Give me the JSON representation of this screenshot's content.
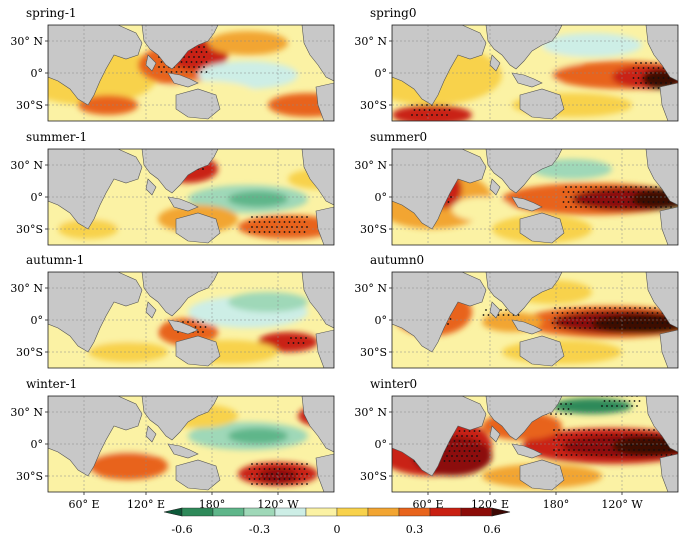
{
  "panels": [
    {
      "id": "spring-1",
      "title": "spring-1",
      "col": 0,
      "row": 0
    },
    {
      "id": "spring0",
      "title": "spring0",
      "col": 1,
      "row": 0
    },
    {
      "id": "summer-1",
      "title": "summer-1",
      "col": 0,
      "row": 1
    },
    {
      "id": "summer0",
      "title": "summer0",
      "col": 1,
      "row": 1
    },
    {
      "id": "autumn-1",
      "title": "autumn-1",
      "col": 0,
      "row": 2
    },
    {
      "id": "autumn0",
      "title": "autumn0",
      "col": 1,
      "row": 2
    },
    {
      "id": "winter-1",
      "title": "winter-1",
      "col": 0,
      "row": 3
    },
    {
      "id": "winter0",
      "title": "winter0",
      "col": 1,
      "row": 3
    }
  ],
  "lat_ticks": [
    "30° N",
    "0°",
    "30°S"
  ],
  "lon_ticks": [
    "60° E",
    "120° E",
    "180°",
    "120° W"
  ],
  "colorbar": {
    "ticks": [
      "-0.6",
      "-0.3",
      "0",
      "0.3",
      "0.6"
    ],
    "colors": [
      "#0e5a3a",
      "#2f8a5a",
      "#5fb68a",
      "#9fd8b8",
      "#cdeee6",
      "#fbf2a4",
      "#f8d24c",
      "#f2a532",
      "#e8641c",
      "#c92012",
      "#8c0c08",
      "#3e0804"
    ]
  }
}
